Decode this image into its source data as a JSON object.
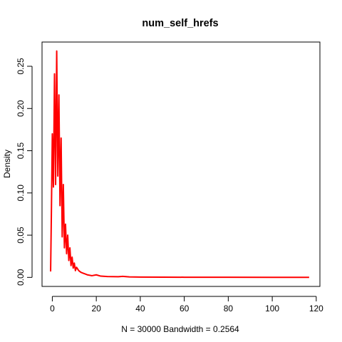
{
  "chart_data": {
    "type": "line",
    "title": "num_self_hrefs",
    "xlabel": "N = 30000   Bandwidth = 0.2564",
    "ylabel": "Density",
    "xlim": [
      -4.67,
      121.67
    ],
    "ylim": [
      -0.0107,
      0.2787
    ],
    "x_ticks": [
      "0",
      "20",
      "40",
      "60",
      "80",
      "100",
      "120"
    ],
    "y_ticks": [
      "0.00",
      "0.05",
      "0.10",
      "0.15",
      "0.20",
      "0.25"
    ],
    "grid": false,
    "legend": "none",
    "series": [
      {
        "color": "#ff0000",
        "x": [
          -0.77,
          -0.4,
          0,
          0.5,
          1,
          1.5,
          2,
          2.5,
          3,
          3.5,
          4,
          4.5,
          5,
          5.5,
          6,
          6.5,
          7,
          7.5,
          8,
          8.5,
          9,
          9.5,
          10,
          10.5,
          11,
          12,
          13,
          14,
          15,
          16,
          18,
          20,
          22,
          25,
          30,
          32,
          35,
          40,
          50,
          60,
          80,
          100,
          116.77
        ],
        "y": [
          0.007,
          0.08,
          0.17,
          0.107,
          0.241,
          0.11,
          0.268,
          0.12,
          0.216,
          0.085,
          0.165,
          0.048,
          0.11,
          0.035,
          0.063,
          0.028,
          0.05,
          0.02,
          0.035,
          0.014,
          0.024,
          0.011,
          0.017,
          0.008,
          0.012,
          0.008,
          0.006,
          0.005,
          0.004,
          0.003,
          0.002,
          0.003,
          0.0015,
          0.001,
          0.0008,
          0.0012,
          0.0006,
          0.0004,
          0.0003,
          0.0002,
          0.0002,
          0.0001,
          0.0001
        ]
      }
    ]
  }
}
